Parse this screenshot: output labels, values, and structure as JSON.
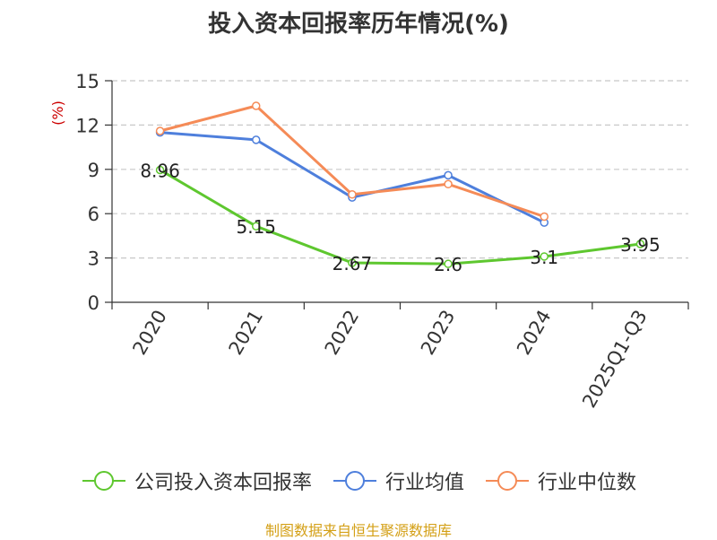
{
  "chart_data": {
    "type": "line",
    "title": "投入资本回报率历年情况(%)",
    "ylabel": "(%)",
    "xlabel": "",
    "categories": [
      "2020",
      "2021",
      "2022",
      "2023",
      "2024",
      "2025Q1-Q3"
    ],
    "ylim": [
      0,
      15
    ],
    "yticks": [
      0,
      3,
      6,
      9,
      12,
      15
    ],
    "grid": true,
    "legend_position": "bottom",
    "series": [
      {
        "name": "公司投入资本回报率",
        "color": "#5ec72f",
        "values": [
          8.96,
          5.15,
          2.67,
          2.6,
          3.1,
          3.95
        ],
        "labels": [
          "8.96",
          "5.15",
          "2.67",
          "2.6",
          "3.1",
          "3.95"
        ]
      },
      {
        "name": "行业均值",
        "color": "#4e7fdc",
        "values": [
          11.5,
          11.0,
          7.1,
          8.6,
          5.4,
          null
        ]
      },
      {
        "name": "行业中位数",
        "color": "#f58b57",
        "values": [
          11.6,
          13.3,
          7.3,
          8.0,
          5.8,
          null
        ]
      }
    ]
  },
  "source": "制图数据来自恒生聚源数据库"
}
